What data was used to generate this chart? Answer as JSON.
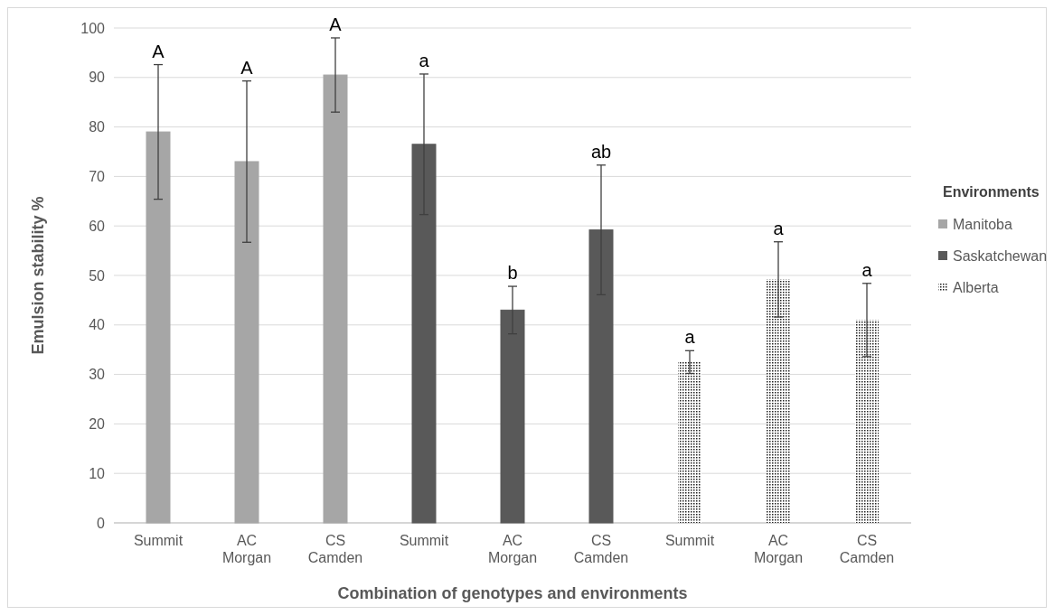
{
  "chart_data": {
    "type": "bar",
    "xlabel": "Combination of genotypes and environments",
    "ylabel": "Emulsion stability %",
    "legend_title": "Environments",
    "categories": [
      "Summit",
      "AC Morgan",
      "CS Camden",
      "Summit",
      "AC Morgan",
      "CS Camden",
      "Summit",
      "AC Morgan",
      "CS Camden"
    ],
    "series": [
      {
        "name": "Manitoba",
        "color": "#a6a6a6",
        "values": [
          79,
          73,
          90.5,
          null,
          null,
          null,
          null,
          null,
          null
        ],
        "errors": [
          13.6,
          16.3,
          7.5,
          null,
          null,
          null,
          null,
          null,
          null
        ]
      },
      {
        "name": "Saskatchewan",
        "color": "#595959",
        "values": [
          null,
          null,
          null,
          76.5,
          43,
          59.2,
          null,
          null,
          null
        ],
        "errors": [
          null,
          null,
          null,
          14.2,
          4.8,
          13.1,
          null,
          null,
          null
        ]
      },
      {
        "name": "Alberta",
        "color": "#222222",
        "values": [
          null,
          null,
          null,
          null,
          null,
          null,
          32.5,
          49.2,
          41
        ],
        "errors": [
          null,
          null,
          null,
          null,
          null,
          null,
          2.3,
          7.6,
          7.4
        ]
      }
    ],
    "ylim": [
      0,
      100
    ],
    "yticks": [
      0,
      10,
      20,
      30,
      40,
      50,
      60,
      70,
      80,
      90,
      100
    ],
    "grid": "y",
    "legend": "right",
    "annotations": [
      "A",
      "A",
      "A",
      "a",
      "b",
      "ab",
      "a",
      "a",
      "a"
    ]
  }
}
